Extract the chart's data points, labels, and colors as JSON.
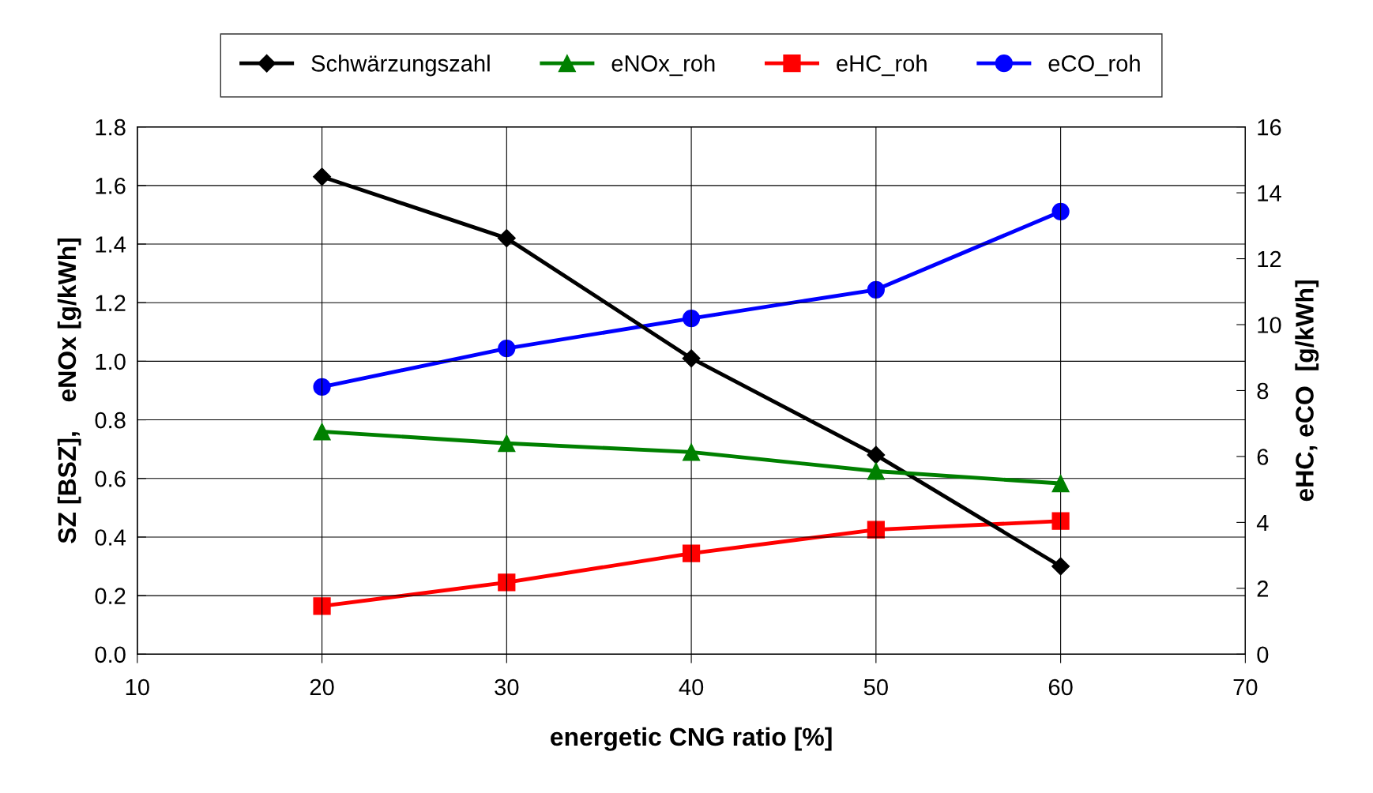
{
  "chart_data": {
    "type": "line",
    "xlabel": "energetic CNG ratio [%]",
    "ylabel": "SZ [BSZ],    eNOx [g/kWh]",
    "y2label": "eHC, eCO  [g/kWh]",
    "x": [
      20,
      30,
      40,
      50,
      60
    ],
    "series": [
      {
        "name": "Schwärzungszahl",
        "color": "#000000",
        "marker": "diamond",
        "values": [
          1.63,
          1.42,
          1.01,
          0.68,
          0.3
        ]
      },
      {
        "name": "eNOx_roh",
        "color": "#008000",
        "marker": "triangle",
        "values": [
          0.76,
          0.72,
          0.69,
          0.625,
          0.583
        ]
      },
      {
        "name": "eHC_roh",
        "color": "#ff0000",
        "marker": "square",
        "axis": "y2",
        "values": [
          1.46,
          2.18,
          3.06,
          3.78,
          4.04
        ]
      },
      {
        "name": "eCO_roh",
        "color": "#0000ff",
        "marker": "circle",
        "axis": "y2",
        "values": [
          8.11,
          9.28,
          10.19,
          11.06,
          13.43
        ]
      }
    ],
    "xlim": [
      10,
      70
    ],
    "xticks": [
      10,
      20,
      30,
      40,
      50,
      60,
      70
    ],
    "ylim": [
      0,
      1.8
    ],
    "yticks": [
      {
        "value": 0,
        "label": "0.0"
      },
      0.2,
      0.4,
      0.6,
      0.8,
      {
        "value": 1,
        "label": "1.0"
      },
      1.2,
      1.4,
      1.6,
      1.8
    ],
    "y2lim": [
      0,
      16
    ],
    "y2ticks": [
      0,
      2,
      4,
      6,
      8,
      10,
      12,
      14,
      16
    ],
    "grid": true,
    "legend": "top",
    "line_style": "solid"
  }
}
